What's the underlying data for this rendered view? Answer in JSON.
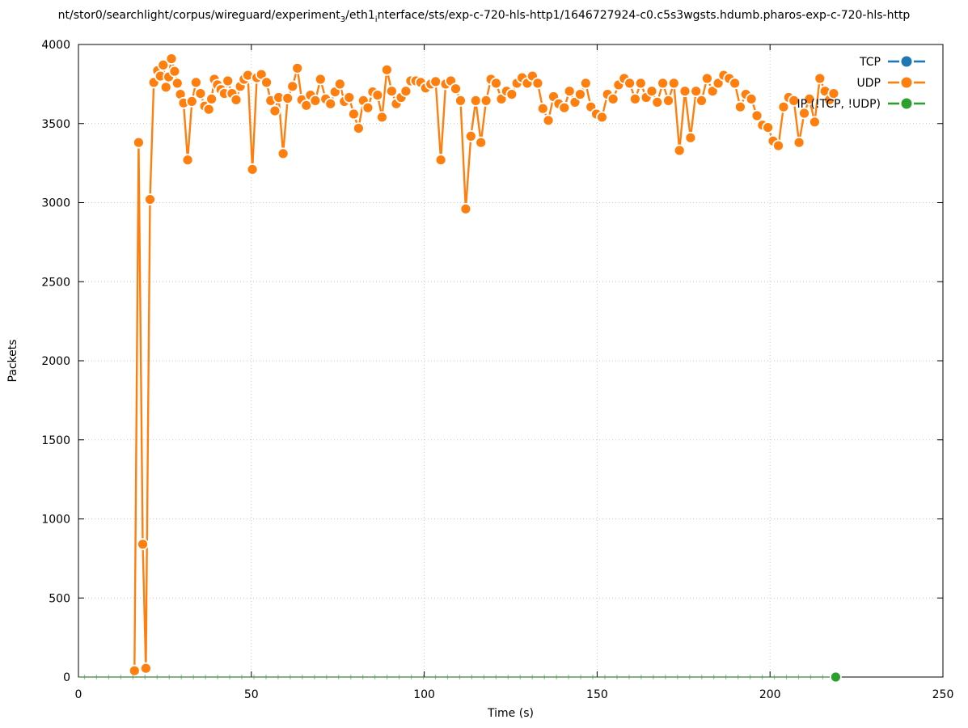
{
  "title": {
    "segments": [
      {
        "text": "nt/stor0/searchlight/corpus/wireguard/experiment",
        "sub": false
      },
      {
        "text": "3",
        "sub": true
      },
      {
        "text": "/eth1",
        "sub": false
      },
      {
        "text": "i",
        "sub": true
      },
      {
        "text": "nterface/sts/exp-c-720-hls-http1/1646727924-c0.c5s3wgsts.hdumb.pharos-exp-c-720-hls-http",
        "sub": false
      }
    ]
  },
  "legend": {
    "position": "top-right",
    "items": [
      {
        "label": "TCP",
        "color": "#1f77b4"
      },
      {
        "label": "UDP",
        "color": "#ff7f0e"
      },
      {
        "label": "IP (!TCP, !UDP)",
        "color": "#2ca02c"
      }
    ]
  },
  "chart_data": {
    "type": "line",
    "title_visible_text": "nt/stor0/searchlight/corpus/wireguard/experiment_3/eth1_interface/sts/exp-c-720-hls-http1/1646727924-c0.c5s3wgsts.hdumb.pharos-exp-c-720-hls-http",
    "xlabel": "Time (s)",
    "ylabel": "Packets",
    "xlim": [
      0,
      250
    ],
    "ylim": [
      0,
      4000
    ],
    "x_ticks": [
      0,
      50,
      100,
      150,
      200,
      250
    ],
    "y_ticks": [
      0,
      500,
      1000,
      1500,
      2000,
      2500,
      3000,
      3500,
      4000
    ],
    "grid": true,
    "legend_position": "top-right",
    "series": [
      {
        "name": "TCP",
        "color": "#1f77b4",
        "style": "dashed-line-with-points",
        "points": []
      },
      {
        "name": "UDP",
        "color": "#ff7f0e",
        "style": "dashed-line-with-points",
        "points": [
          [
            16.2,
            40
          ],
          [
            17.4,
            3380
          ],
          [
            18.6,
            840
          ],
          [
            19.5,
            55
          ],
          [
            20.7,
            3020
          ],
          [
            21.8,
            3760
          ],
          [
            22.9,
            3835
          ],
          [
            23.7,
            3800
          ],
          [
            24.5,
            3870
          ],
          [
            25.3,
            3730
          ],
          [
            26.1,
            3795
          ],
          [
            26.9,
            3910
          ],
          [
            27.8,
            3830
          ],
          [
            28.6,
            3755
          ],
          [
            29.5,
            3685
          ],
          [
            30.4,
            3630
          ],
          [
            31.6,
            3270
          ],
          [
            32.8,
            3640
          ],
          [
            34.0,
            3760
          ],
          [
            35.3,
            3690
          ],
          [
            36.5,
            3610
          ],
          [
            37.7,
            3590
          ],
          [
            38.5,
            3655
          ],
          [
            39.3,
            3780
          ],
          [
            40.2,
            3745
          ],
          [
            41.2,
            3715
          ],
          [
            42.2,
            3690
          ],
          [
            43.2,
            3770
          ],
          [
            44.4,
            3690
          ],
          [
            45.6,
            3650
          ],
          [
            46.8,
            3735
          ],
          [
            47.9,
            3780
          ],
          [
            49.0,
            3805
          ],
          [
            50.3,
            3210
          ],
          [
            51.6,
            3790
          ],
          [
            52.9,
            3810
          ],
          [
            54.4,
            3760
          ],
          [
            55.6,
            3645
          ],
          [
            56.8,
            3580
          ],
          [
            57.9,
            3665
          ],
          [
            59.2,
            3310
          ],
          [
            60.5,
            3660
          ],
          [
            61.9,
            3735
          ],
          [
            63.3,
            3850
          ],
          [
            64.6,
            3650
          ],
          [
            65.9,
            3615
          ],
          [
            67.1,
            3680
          ],
          [
            68.5,
            3645
          ],
          [
            70.0,
            3780
          ],
          [
            71.5,
            3655
          ],
          [
            72.9,
            3625
          ],
          [
            74.2,
            3700
          ],
          [
            75.6,
            3750
          ],
          [
            76.9,
            3640
          ],
          [
            78.3,
            3665
          ],
          [
            79.6,
            3560
          ],
          [
            81.0,
            3470
          ],
          [
            82.4,
            3645
          ],
          [
            83.7,
            3600
          ],
          [
            85.1,
            3700
          ],
          [
            86.5,
            3680
          ],
          [
            87.8,
            3540
          ],
          [
            89.2,
            3840
          ],
          [
            90.6,
            3705
          ],
          [
            91.9,
            3625
          ],
          [
            93.3,
            3665
          ],
          [
            94.7,
            3705
          ],
          [
            96.1,
            3770
          ],
          [
            97.6,
            3770
          ],
          [
            99.0,
            3760
          ],
          [
            100.4,
            3725
          ],
          [
            101.9,
            3750
          ],
          [
            103.3,
            3765
          ],
          [
            104.8,
            3270
          ],
          [
            106.2,
            3750
          ],
          [
            107.7,
            3770
          ],
          [
            109.1,
            3720
          ],
          [
            110.5,
            3645
          ],
          [
            112.0,
            2960
          ],
          [
            113.5,
            3420
          ],
          [
            114.9,
            3645
          ],
          [
            116.4,
            3380
          ],
          [
            117.9,
            3645
          ],
          [
            119.3,
            3780
          ],
          [
            120.8,
            3755
          ],
          [
            122.3,
            3655
          ],
          [
            123.8,
            3705
          ],
          [
            125.3,
            3685
          ],
          [
            126.8,
            3755
          ],
          [
            128.3,
            3790
          ],
          [
            129.8,
            3755
          ],
          [
            131.3,
            3800
          ],
          [
            132.8,
            3755
          ],
          [
            134.3,
            3595
          ],
          [
            135.9,
            3520
          ],
          [
            137.4,
            3670
          ],
          [
            138.9,
            3625
          ],
          [
            140.5,
            3600
          ],
          [
            142.0,
            3705
          ],
          [
            143.6,
            3635
          ],
          [
            145.1,
            3685
          ],
          [
            146.7,
            3755
          ],
          [
            148.2,
            3605
          ],
          [
            149.8,
            3560
          ],
          [
            151.4,
            3540
          ],
          [
            153.0,
            3685
          ],
          [
            154.6,
            3655
          ],
          [
            156.2,
            3745
          ],
          [
            157.8,
            3785
          ],
          [
            159.4,
            3755
          ],
          [
            161.0,
            3655
          ],
          [
            162.6,
            3755
          ],
          [
            164.2,
            3665
          ],
          [
            165.8,
            3705
          ],
          [
            167.4,
            3635
          ],
          [
            169.0,
            3755
          ],
          [
            170.6,
            3645
          ],
          [
            172.2,
            3755
          ],
          [
            173.8,
            3330
          ],
          [
            175.4,
            3705
          ],
          [
            177.0,
            3410
          ],
          [
            178.6,
            3705
          ],
          [
            180.2,
            3645
          ],
          [
            181.8,
            3785
          ],
          [
            183.4,
            3705
          ],
          [
            185.0,
            3755
          ],
          [
            186.6,
            3805
          ],
          [
            188.2,
            3785
          ],
          [
            189.8,
            3755
          ],
          [
            191.4,
            3605
          ],
          [
            193.0,
            3685
          ],
          [
            194.6,
            3655
          ],
          [
            196.2,
            3550
          ],
          [
            197.8,
            3490
          ],
          [
            199.4,
            3475
          ],
          [
            200.9,
            3390
          ],
          [
            202.4,
            3360
          ],
          [
            203.9,
            3605
          ],
          [
            205.4,
            3665
          ],
          [
            206.9,
            3645
          ],
          [
            208.4,
            3380
          ],
          [
            209.9,
            3565
          ],
          [
            211.4,
            3655
          ],
          [
            212.9,
            3510
          ],
          [
            214.4,
            3785
          ],
          [
            215.9,
            3705
          ],
          [
            217.2,
            3650
          ],
          [
            218.4,
            3690
          ]
        ]
      },
      {
        "name": "IP (!TCP, !UDP)",
        "color": "#2ca02c",
        "style": "dashed-line-with-points",
        "baseline": {
          "from": 0,
          "to": 219,
          "value": 0,
          "tick_interval": 3.5
        },
        "points": [
          [
            219,
            0
          ]
        ]
      }
    ]
  }
}
